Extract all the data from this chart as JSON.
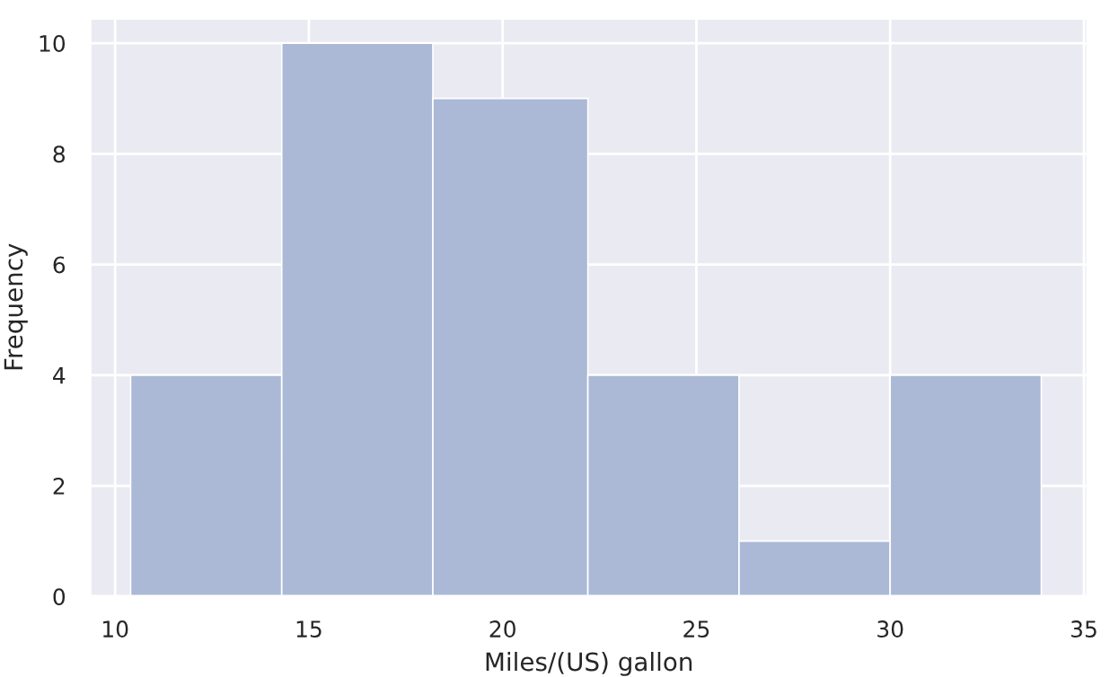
{
  "chart_data": {
    "type": "histogram",
    "xlabel": "Miles/(US) gallon",
    "ylabel": "Frequency",
    "bins": [
      10.4,
      14.3,
      18.2,
      22.2,
      26.1,
      30.0,
      33.9
    ],
    "values": [
      4,
      10,
      9,
      4,
      1,
      4
    ],
    "color": "#abb9d7",
    "xlim": [
      9.35,
      35.1
    ],
    "xticks": [
      10,
      15,
      20,
      25,
      30,
      35
    ],
    "ylim": [
      0,
      10.45
    ],
    "yticks": [
      0,
      2,
      4,
      6,
      8,
      10
    ],
    "grid": true
  }
}
